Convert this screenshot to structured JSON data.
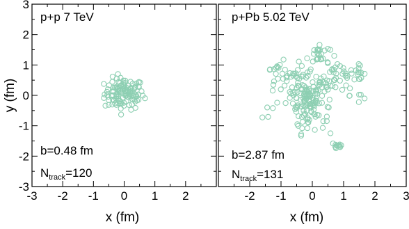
{
  "chart_data": [
    {
      "type": "scatter",
      "title": "p+p 7 TeV",
      "xlabel": "x (fm)",
      "ylabel": "y (fm)",
      "xlim": [
        -3,
        3
      ],
      "ylim": [
        -3,
        3
      ],
      "x_ticks": [
        "-3",
        "-2",
        "-1",
        "0",
        "1",
        "2"
      ],
      "y_ticks": [
        "-3",
        "-2",
        "-1",
        "0",
        "1",
        "2",
        "3"
      ],
      "annotations": {
        "b": "b=0.48 fm",
        "ntrack_prefix": "N",
        "ntrack_sub": "track",
        "ntrack_value": "=120"
      },
      "marker_color": "#8dcfb2",
      "marker": "open-circle",
      "series": [
        {
          "blobs": [
            {
              "cx": 0.0,
              "cy": 0.05,
              "spread_x": 0.32,
              "spread_y": 0.26,
              "n": 120
            }
          ]
        }
      ]
    },
    {
      "type": "scatter",
      "title": "p+Pb 5.02 TeV",
      "xlabel": "x (fm)",
      "ylabel": "",
      "xlim": [
        -3,
        3
      ],
      "ylim": [
        -3,
        3
      ],
      "x_ticks": [
        "-2",
        "-1",
        "0",
        "1",
        "2",
        "3"
      ],
      "y_ticks": [],
      "annotations": {
        "b": "b=2.87 fm",
        "ntrack_prefix": "N",
        "ntrack_sub": "track",
        "ntrack_value": "=131"
      },
      "marker_color": "#8dcfb2",
      "marker": "open-circle",
      "series": [
        {
          "blobs": [
            {
              "cx": -0.2,
              "cy": 0.0,
              "spread_x": 0.3,
              "spread_y": 0.3,
              "n": 60
            },
            {
              "cx": -0.1,
              "cy": -0.75,
              "spread_x": 0.25,
              "spread_y": 0.25,
              "n": 30
            },
            {
              "cx": 0.2,
              "cy": 1.35,
              "spread_x": 0.18,
              "spread_y": 0.18,
              "n": 25
            },
            {
              "cx": -0.35,
              "cy": 0.8,
              "spread_x": 0.18,
              "spread_y": 0.18,
              "n": 20
            },
            {
              "cx": 0.4,
              "cy": 0.35,
              "spread_x": 0.18,
              "spread_y": 0.18,
              "n": 20
            },
            {
              "cx": 0.75,
              "cy": 0.9,
              "spread_x": 0.15,
              "spread_y": 0.15,
              "n": 12
            },
            {
              "cx": 1.1,
              "cy": 0.5,
              "spread_x": 0.15,
              "spread_y": 0.15,
              "n": 12
            },
            {
              "cx": 1.45,
              "cy": 0.75,
              "spread_x": 0.12,
              "spread_y": 0.12,
              "n": 14
            },
            {
              "cx": -1.0,
              "cy": 0.2,
              "spread_x": 0.3,
              "spread_y": 0.5,
              "n": 25
            },
            {
              "cx": -1.2,
              "cy": 0.9,
              "spread_x": 0.1,
              "spread_y": 0.1,
              "n": 5
            },
            {
              "cx": 0.8,
              "cy": -1.65,
              "spread_x": 0.1,
              "spread_y": 0.08,
              "n": 12
            },
            {
              "cx": 1.5,
              "cy": 0.0,
              "spread_x": 0.15,
              "spread_y": 0.2,
              "n": 6
            },
            {
              "cx": 0.1,
              "cy": -0.2,
              "spread_x": 0.4,
              "spread_y": 0.3,
              "n": 25
            },
            {
              "cx": -0.5,
              "cy": -0.25,
              "spread_x": 0.15,
              "spread_y": 0.35,
              "n": 10
            }
          ]
        }
      ]
    }
  ]
}
